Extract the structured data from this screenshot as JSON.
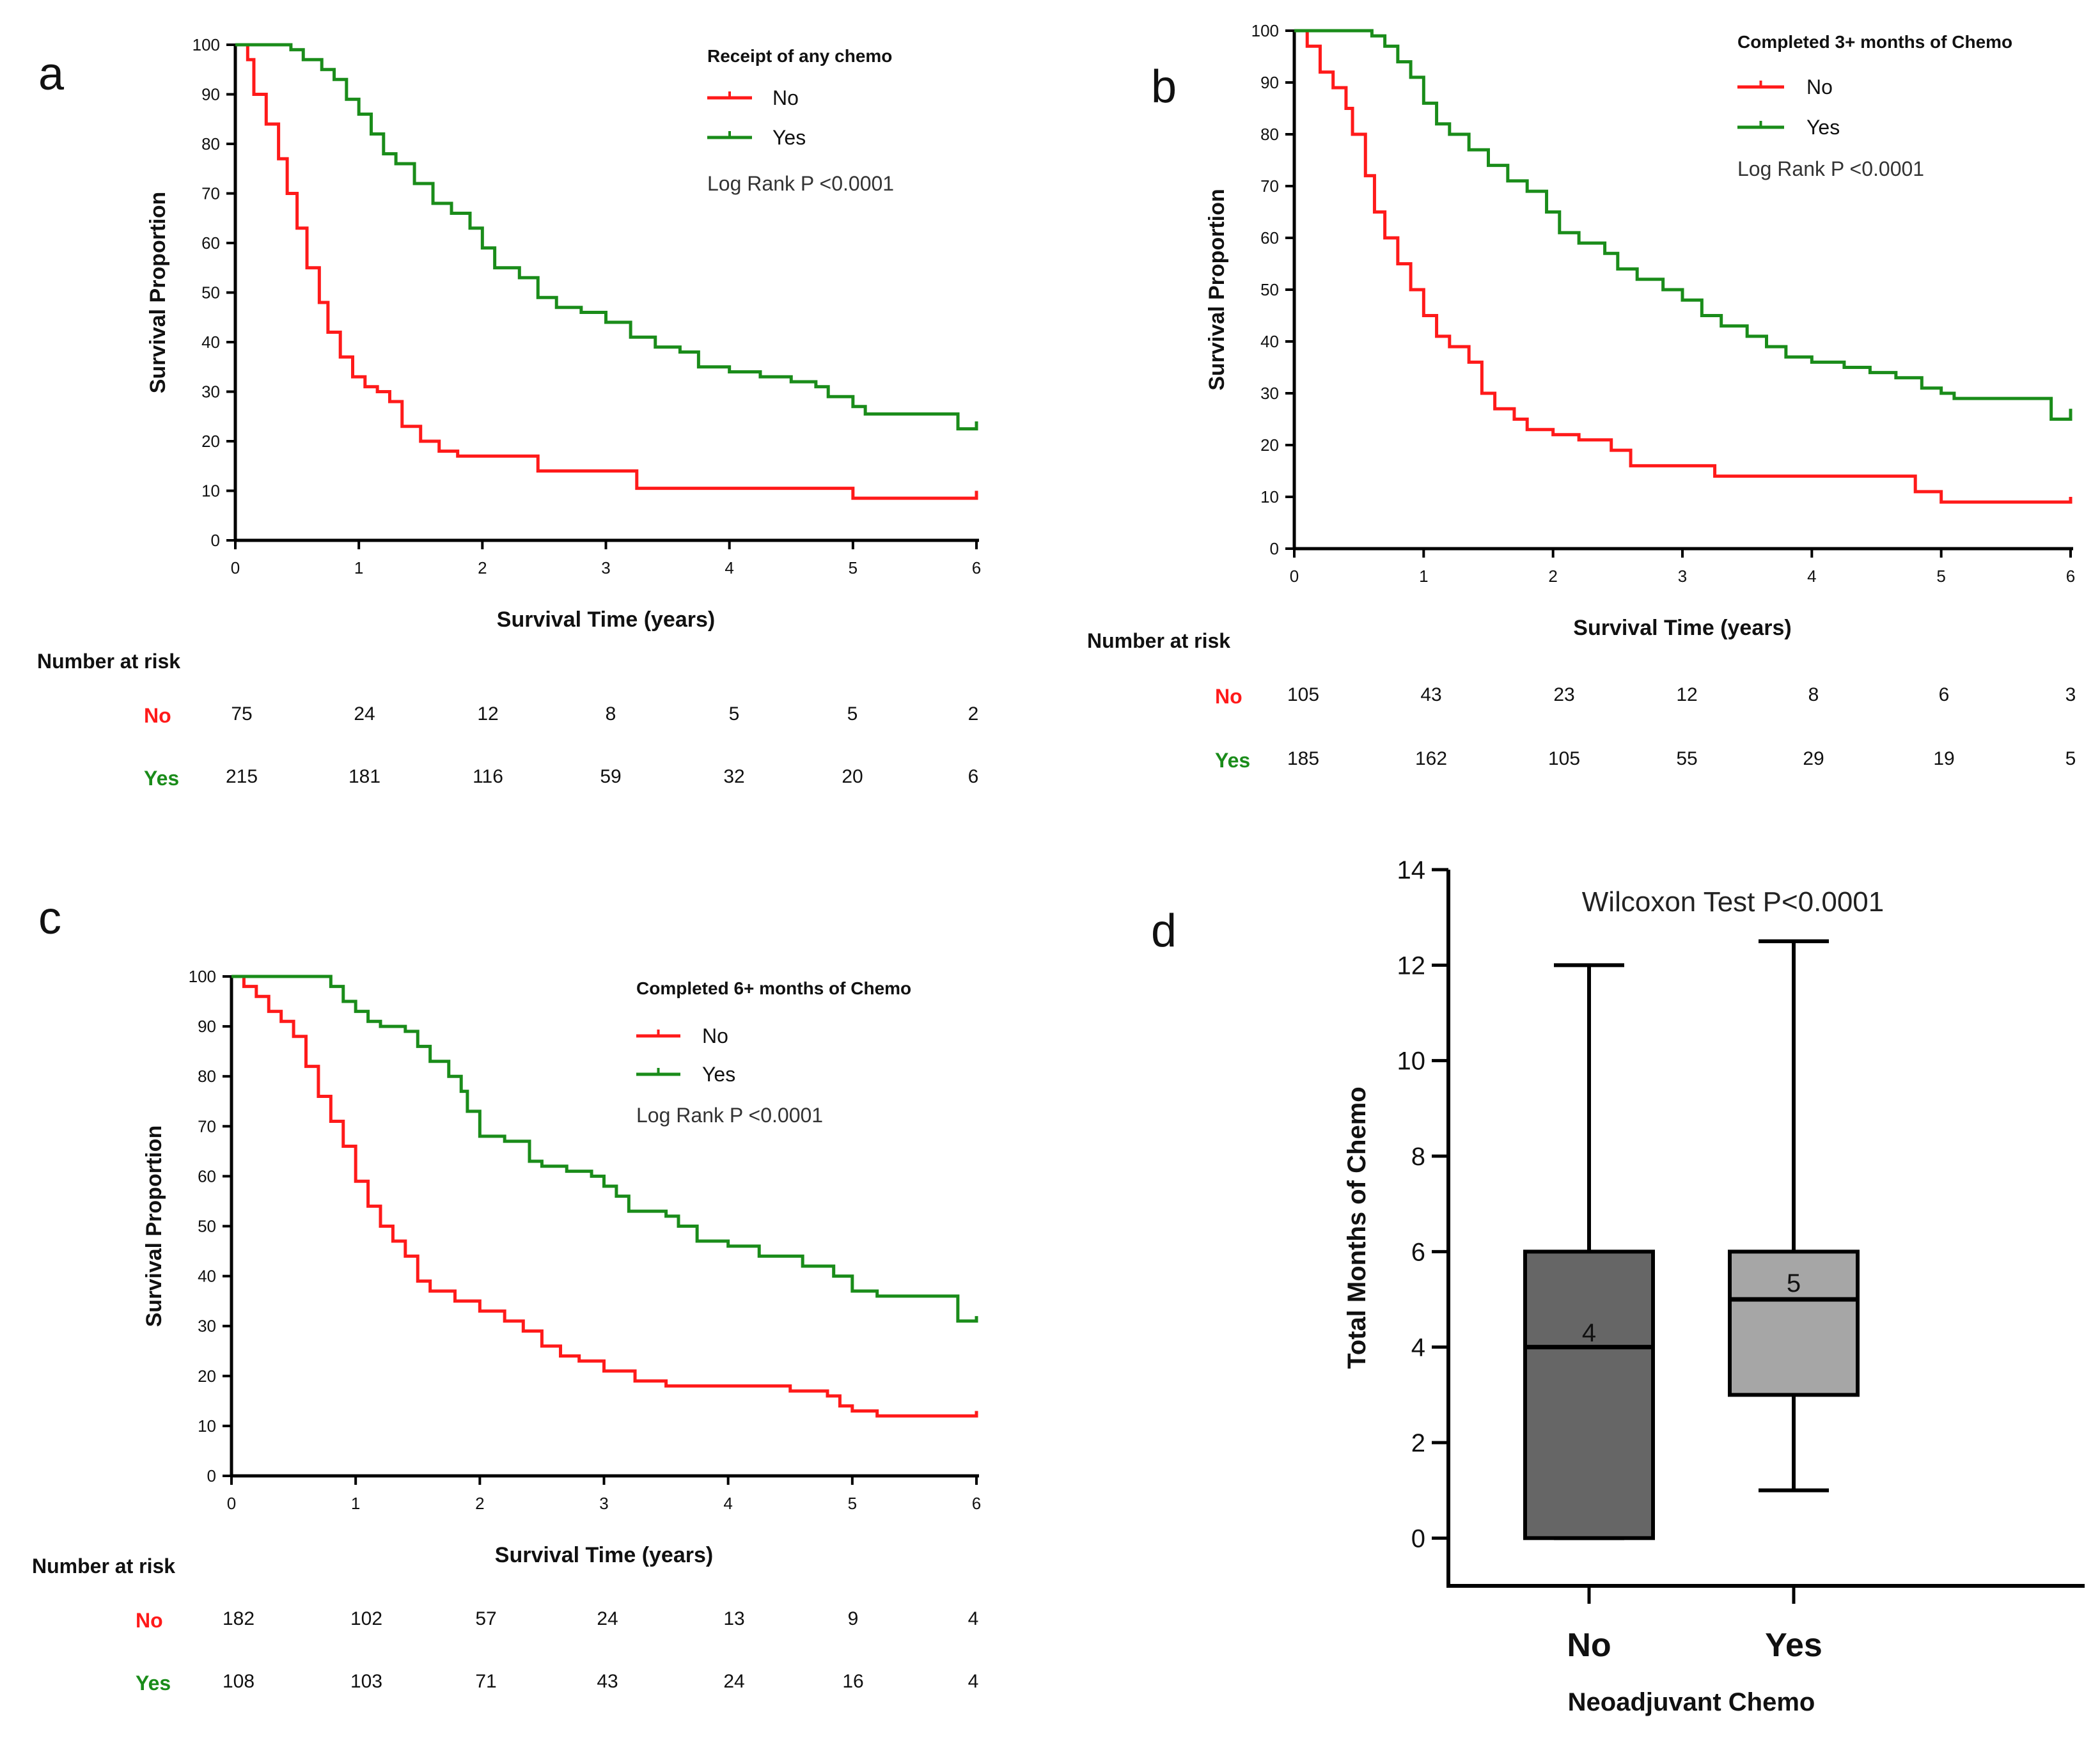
{
  "colors": {
    "no": "#ff1a1a",
    "yes": "#1a8c1a",
    "axis": "#000000",
    "box_no": "#666666",
    "box_yes": "#a6a6a6"
  },
  "chart_data": [
    {
      "panel": "a",
      "type": "line",
      "subtype": "kaplan-meier",
      "legend_title": "Receipt of any chemo",
      "pvalue_text": "Log Rank P <0.0001",
      "xlabel": "Survival Time (years)",
      "ylabel": "Survival Proportion",
      "xlim": [
        0,
        6
      ],
      "ylim": [
        0,
        100
      ],
      "xticks": [
        "0",
        "1",
        "2",
        "3",
        "4",
        "5",
        "6"
      ],
      "yticks": [
        "0",
        "10",
        "20",
        "30",
        "40",
        "50",
        "60",
        "70",
        "80",
        "90",
        "100"
      ],
      "legend_position": "top-right",
      "series": [
        {
          "name": "No",
          "color": "#ff1a1a",
          "points": [
            [
              0,
              100
            ],
            [
              0.1,
              97
            ],
            [
              0.15,
              90
            ],
            [
              0.25,
              84
            ],
            [
              0.35,
              77
            ],
            [
              0.42,
              70
            ],
            [
              0.5,
              63
            ],
            [
              0.58,
              55
            ],
            [
              0.68,
              48
            ],
            [
              0.75,
              42
            ],
            [
              0.85,
              37
            ],
            [
              0.95,
              33
            ],
            [
              1.05,
              31
            ],
            [
              1.15,
              30
            ],
            [
              1.25,
              28
            ],
            [
              1.35,
              23
            ],
            [
              1.5,
              20
            ],
            [
              1.65,
              18
            ],
            [
              1.8,
              17
            ],
            [
              2.0,
              17
            ],
            [
              2.3,
              17
            ],
            [
              2.45,
              14
            ],
            [
              2.8,
              14
            ],
            [
              3.0,
              14
            ],
            [
              3.25,
              10.5
            ],
            [
              4.0,
              10.5
            ],
            [
              4.6,
              10.5
            ],
            [
              5.0,
              8.5
            ],
            [
              5.5,
              8.5
            ],
            [
              6.0,
              8.5
            ],
            [
              6.0,
              10
            ]
          ]
        },
        {
          "name": "Yes",
          "color": "#1a8c1a",
          "points": [
            [
              0,
              100
            ],
            [
              0.3,
              100
            ],
            [
              0.45,
              99
            ],
            [
              0.55,
              97
            ],
            [
              0.7,
              95
            ],
            [
              0.8,
              93
            ],
            [
              0.9,
              89
            ],
            [
              1.0,
              86
            ],
            [
              1.1,
              82
            ],
            [
              1.2,
              78
            ],
            [
              1.3,
              76
            ],
            [
              1.45,
              72
            ],
            [
              1.6,
              68
            ],
            [
              1.75,
              66
            ],
            [
              1.9,
              63
            ],
            [
              2.0,
              59
            ],
            [
              2.1,
              55
            ],
            [
              2.3,
              53
            ],
            [
              2.45,
              49
            ],
            [
              2.6,
              47
            ],
            [
              2.8,
              46
            ],
            [
              3.0,
              44
            ],
            [
              3.2,
              41
            ],
            [
              3.4,
              39
            ],
            [
              3.6,
              38
            ],
            [
              3.75,
              35
            ],
            [
              4.0,
              34
            ],
            [
              4.2,
              34
            ],
            [
              4.25,
              33
            ],
            [
              4.5,
              32
            ],
            [
              4.7,
              31
            ],
            [
              4.8,
              29
            ],
            [
              5.0,
              27
            ],
            [
              5.1,
              25.5
            ],
            [
              5.5,
              25.5
            ],
            [
              5.8,
              25.5
            ],
            [
              5.85,
              22.5
            ],
            [
              6.0,
              22.5
            ],
            [
              6.0,
              24
            ]
          ]
        }
      ],
      "risk_table": {
        "title": "Number at risk",
        "times": [
          "0",
          "1",
          "2",
          "3",
          "4",
          "5",
          "6"
        ],
        "groups": [
          {
            "name": "No",
            "counts": [
              "75",
              "24",
              "12",
              "8",
              "5",
              "5",
              "2"
            ]
          },
          {
            "name": "Yes",
            "counts": [
              "215",
              "181",
              "116",
              "59",
              "32",
              "20",
              "6"
            ]
          }
        ]
      }
    },
    {
      "panel": "b",
      "type": "line",
      "subtype": "kaplan-meier",
      "legend_title": "Completed 3+ months of Chemo",
      "pvalue_text": "Log Rank P <0.0001",
      "xlabel": "Survival Time (years)",
      "ylabel": "Survival Proportion",
      "xlim": [
        0,
        6
      ],
      "ylim": [
        0,
        100
      ],
      "xticks": [
        "0",
        "1",
        "2",
        "3",
        "4",
        "5",
        "6"
      ],
      "yticks": [
        "0",
        "10",
        "20",
        "30",
        "40",
        "50",
        "60",
        "70",
        "80",
        "90",
        "100"
      ],
      "legend_position": "top-right",
      "series": [
        {
          "name": "No",
          "color": "#ff1a1a",
          "points": [
            [
              0,
              100
            ],
            [
              0.1,
              97
            ],
            [
              0.2,
              92
            ],
            [
              0.3,
              89
            ],
            [
              0.4,
              85
            ],
            [
              0.45,
              80
            ],
            [
              0.55,
              72
            ],
            [
              0.62,
              65
            ],
            [
              0.7,
              60
            ],
            [
              0.8,
              55
            ],
            [
              0.9,
              50
            ],
            [
              1.0,
              45
            ],
            [
              1.1,
              41
            ],
            [
              1.2,
              39
            ],
            [
              1.35,
              36
            ],
            [
              1.45,
              30
            ],
            [
              1.55,
              27
            ],
            [
              1.7,
              25
            ],
            [
              1.8,
              23
            ],
            [
              2.0,
              22
            ],
            [
              2.2,
              21
            ],
            [
              2.45,
              19
            ],
            [
              2.6,
              16
            ],
            [
              3.0,
              16
            ],
            [
              3.25,
              14
            ],
            [
              4.0,
              14
            ],
            [
              4.5,
              14
            ],
            [
              4.8,
              11
            ],
            [
              5.0,
              9
            ],
            [
              5.5,
              9
            ],
            [
              6.0,
              9
            ],
            [
              6.0,
              10
            ]
          ]
        },
        {
          "name": "Yes",
          "color": "#1a8c1a",
          "points": [
            [
              0,
              100
            ],
            [
              0.5,
              100
            ],
            [
              0.6,
              99
            ],
            [
              0.7,
              97
            ],
            [
              0.8,
              94
            ],
            [
              0.9,
              91
            ],
            [
              1.0,
              86
            ],
            [
              1.1,
              82
            ],
            [
              1.2,
              80
            ],
            [
              1.35,
              77
            ],
            [
              1.5,
              74
            ],
            [
              1.65,
              71
            ],
            [
              1.8,
              69
            ],
            [
              1.95,
              65
            ],
            [
              2.05,
              61
            ],
            [
              2.2,
              59
            ],
            [
              2.4,
              57
            ],
            [
              2.5,
              54
            ],
            [
              2.65,
              52
            ],
            [
              2.85,
              50
            ],
            [
              3.0,
              48
            ],
            [
              3.15,
              45
            ],
            [
              3.3,
              43
            ],
            [
              3.5,
              41
            ],
            [
              3.65,
              39
            ],
            [
              3.8,
              37
            ],
            [
              4.0,
              36
            ],
            [
              4.25,
              35
            ],
            [
              4.45,
              34
            ],
            [
              4.65,
              33
            ],
            [
              4.85,
              31
            ],
            [
              5.0,
              30
            ],
            [
              5.1,
              29
            ],
            [
              5.8,
              29
            ],
            [
              5.85,
              25
            ],
            [
              6.0,
              25
            ],
            [
              6.0,
              27
            ]
          ]
        }
      ],
      "risk_table": {
        "title": "Number at risk",
        "times": [
          "0",
          "1",
          "2",
          "3",
          "4",
          "5",
          "6"
        ],
        "groups": [
          {
            "name": "No",
            "counts": [
              "105",
              "43",
              "23",
              "12",
              "8",
              "6",
              "3"
            ]
          },
          {
            "name": "Yes",
            "counts": [
              "185",
              "162",
              "105",
              "55",
              "29",
              "19",
              "5"
            ]
          }
        ]
      }
    },
    {
      "panel": "c",
      "type": "line",
      "subtype": "kaplan-meier",
      "legend_title": "Completed 6+ months of Chemo",
      "pvalue_text": "Log Rank P <0.0001",
      "xlabel": "Survival Time (years)",
      "ylabel": "Survival Proportion",
      "xlim": [
        0,
        6
      ],
      "ylim": [
        0,
        100
      ],
      "xticks": [
        "0",
        "1",
        "2",
        "3",
        "4",
        "5",
        "6"
      ],
      "yticks": [
        "0",
        "10",
        "20",
        "30",
        "40",
        "50",
        "60",
        "70",
        "80",
        "90",
        "100"
      ],
      "legend_position": "top-right",
      "series": [
        {
          "name": "No",
          "color": "#ff1a1a",
          "points": [
            [
              0,
              100
            ],
            [
              0.1,
              98
            ],
            [
              0.2,
              96
            ],
            [
              0.3,
              93
            ],
            [
              0.4,
              91
            ],
            [
              0.5,
              88
            ],
            [
              0.6,
              82
            ],
            [
              0.7,
              76
            ],
            [
              0.8,
              71
            ],
            [
              0.9,
              66
            ],
            [
              1.0,
              59
            ],
            [
              1.1,
              54
            ],
            [
              1.2,
              50
            ],
            [
              1.3,
              47
            ],
            [
              1.4,
              44
            ],
            [
              1.5,
              39
            ],
            [
              1.6,
              37
            ],
            [
              1.8,
              35
            ],
            [
              2.0,
              33
            ],
            [
              2.2,
              31
            ],
            [
              2.35,
              29
            ],
            [
              2.5,
              26
            ],
            [
              2.65,
              24
            ],
            [
              2.8,
              23
            ],
            [
              3.0,
              21
            ],
            [
              3.25,
              19
            ],
            [
              3.5,
              18
            ],
            [
              4.0,
              18
            ],
            [
              4.5,
              17
            ],
            [
              4.8,
              16
            ],
            [
              4.9,
              14
            ],
            [
              5.0,
              13
            ],
            [
              5.2,
              12
            ],
            [
              6.0,
              12
            ],
            [
              6.0,
              13
            ]
          ]
        },
        {
          "name": "Yes",
          "color": "#1a8c1a",
          "points": [
            [
              0,
              100
            ],
            [
              0.7,
              100
            ],
            [
              0.8,
              98
            ],
            [
              0.9,
              95
            ],
            [
              1.0,
              93
            ],
            [
              1.1,
              91
            ],
            [
              1.2,
              90
            ],
            [
              1.4,
              89
            ],
            [
              1.5,
              86
            ],
            [
              1.6,
              83
            ],
            [
              1.75,
              80
            ],
            [
              1.85,
              77
            ],
            [
              1.9,
              73
            ],
            [
              2.0,
              68
            ],
            [
              2.2,
              67
            ],
            [
              2.4,
              63
            ],
            [
              2.5,
              62
            ],
            [
              2.7,
              61
            ],
            [
              2.9,
              60
            ],
            [
              3.0,
              58
            ],
            [
              3.1,
              56
            ],
            [
              3.2,
              53
            ],
            [
              3.5,
              52
            ],
            [
              3.6,
              50
            ],
            [
              3.75,
              47
            ],
            [
              4.0,
              46
            ],
            [
              4.25,
              44
            ],
            [
              4.6,
              42
            ],
            [
              4.85,
              40
            ],
            [
              5.0,
              37
            ],
            [
              5.2,
              36
            ],
            [
              5.8,
              36
            ],
            [
              5.85,
              31
            ],
            [
              6.0,
              31
            ],
            [
              6.0,
              32
            ]
          ]
        }
      ],
      "risk_table": {
        "title": "Number at risk",
        "times": [
          "0",
          "1",
          "2",
          "3",
          "4",
          "5",
          "6"
        ],
        "groups": [
          {
            "name": "No",
            "counts": [
              "182",
              "102",
              "57",
              "24",
              "13",
              "9",
              "4"
            ]
          },
          {
            "name": "Yes",
            "counts": [
              "108",
              "103",
              "71",
              "43",
              "24",
              "16",
              "4"
            ]
          }
        ]
      }
    },
    {
      "panel": "d",
      "type": "box",
      "title": "Wilcoxon Test P<0.0001",
      "xlabel": "Neoadjuvant Chemo",
      "ylabel": "Total Months of Chemo",
      "ylim": [
        -1,
        14
      ],
      "yticks": [
        "0",
        "2",
        "4",
        "6",
        "8",
        "10",
        "12",
        "14"
      ],
      "categories": [
        "No",
        "Yes"
      ],
      "boxes": [
        {
          "name": "No",
          "min": 0,
          "q1": 0,
          "median": 4,
          "q3": 6,
          "max": 12,
          "median_label": "4",
          "color": "#666666"
        },
        {
          "name": "Yes",
          "min": 1,
          "q1": 3,
          "median": 5,
          "q3": 6,
          "max": 12.5,
          "median_label": "5",
          "color": "#a6a6a6"
        }
      ]
    }
  ],
  "panel_letters": [
    "a",
    "b",
    "c",
    "d"
  ]
}
